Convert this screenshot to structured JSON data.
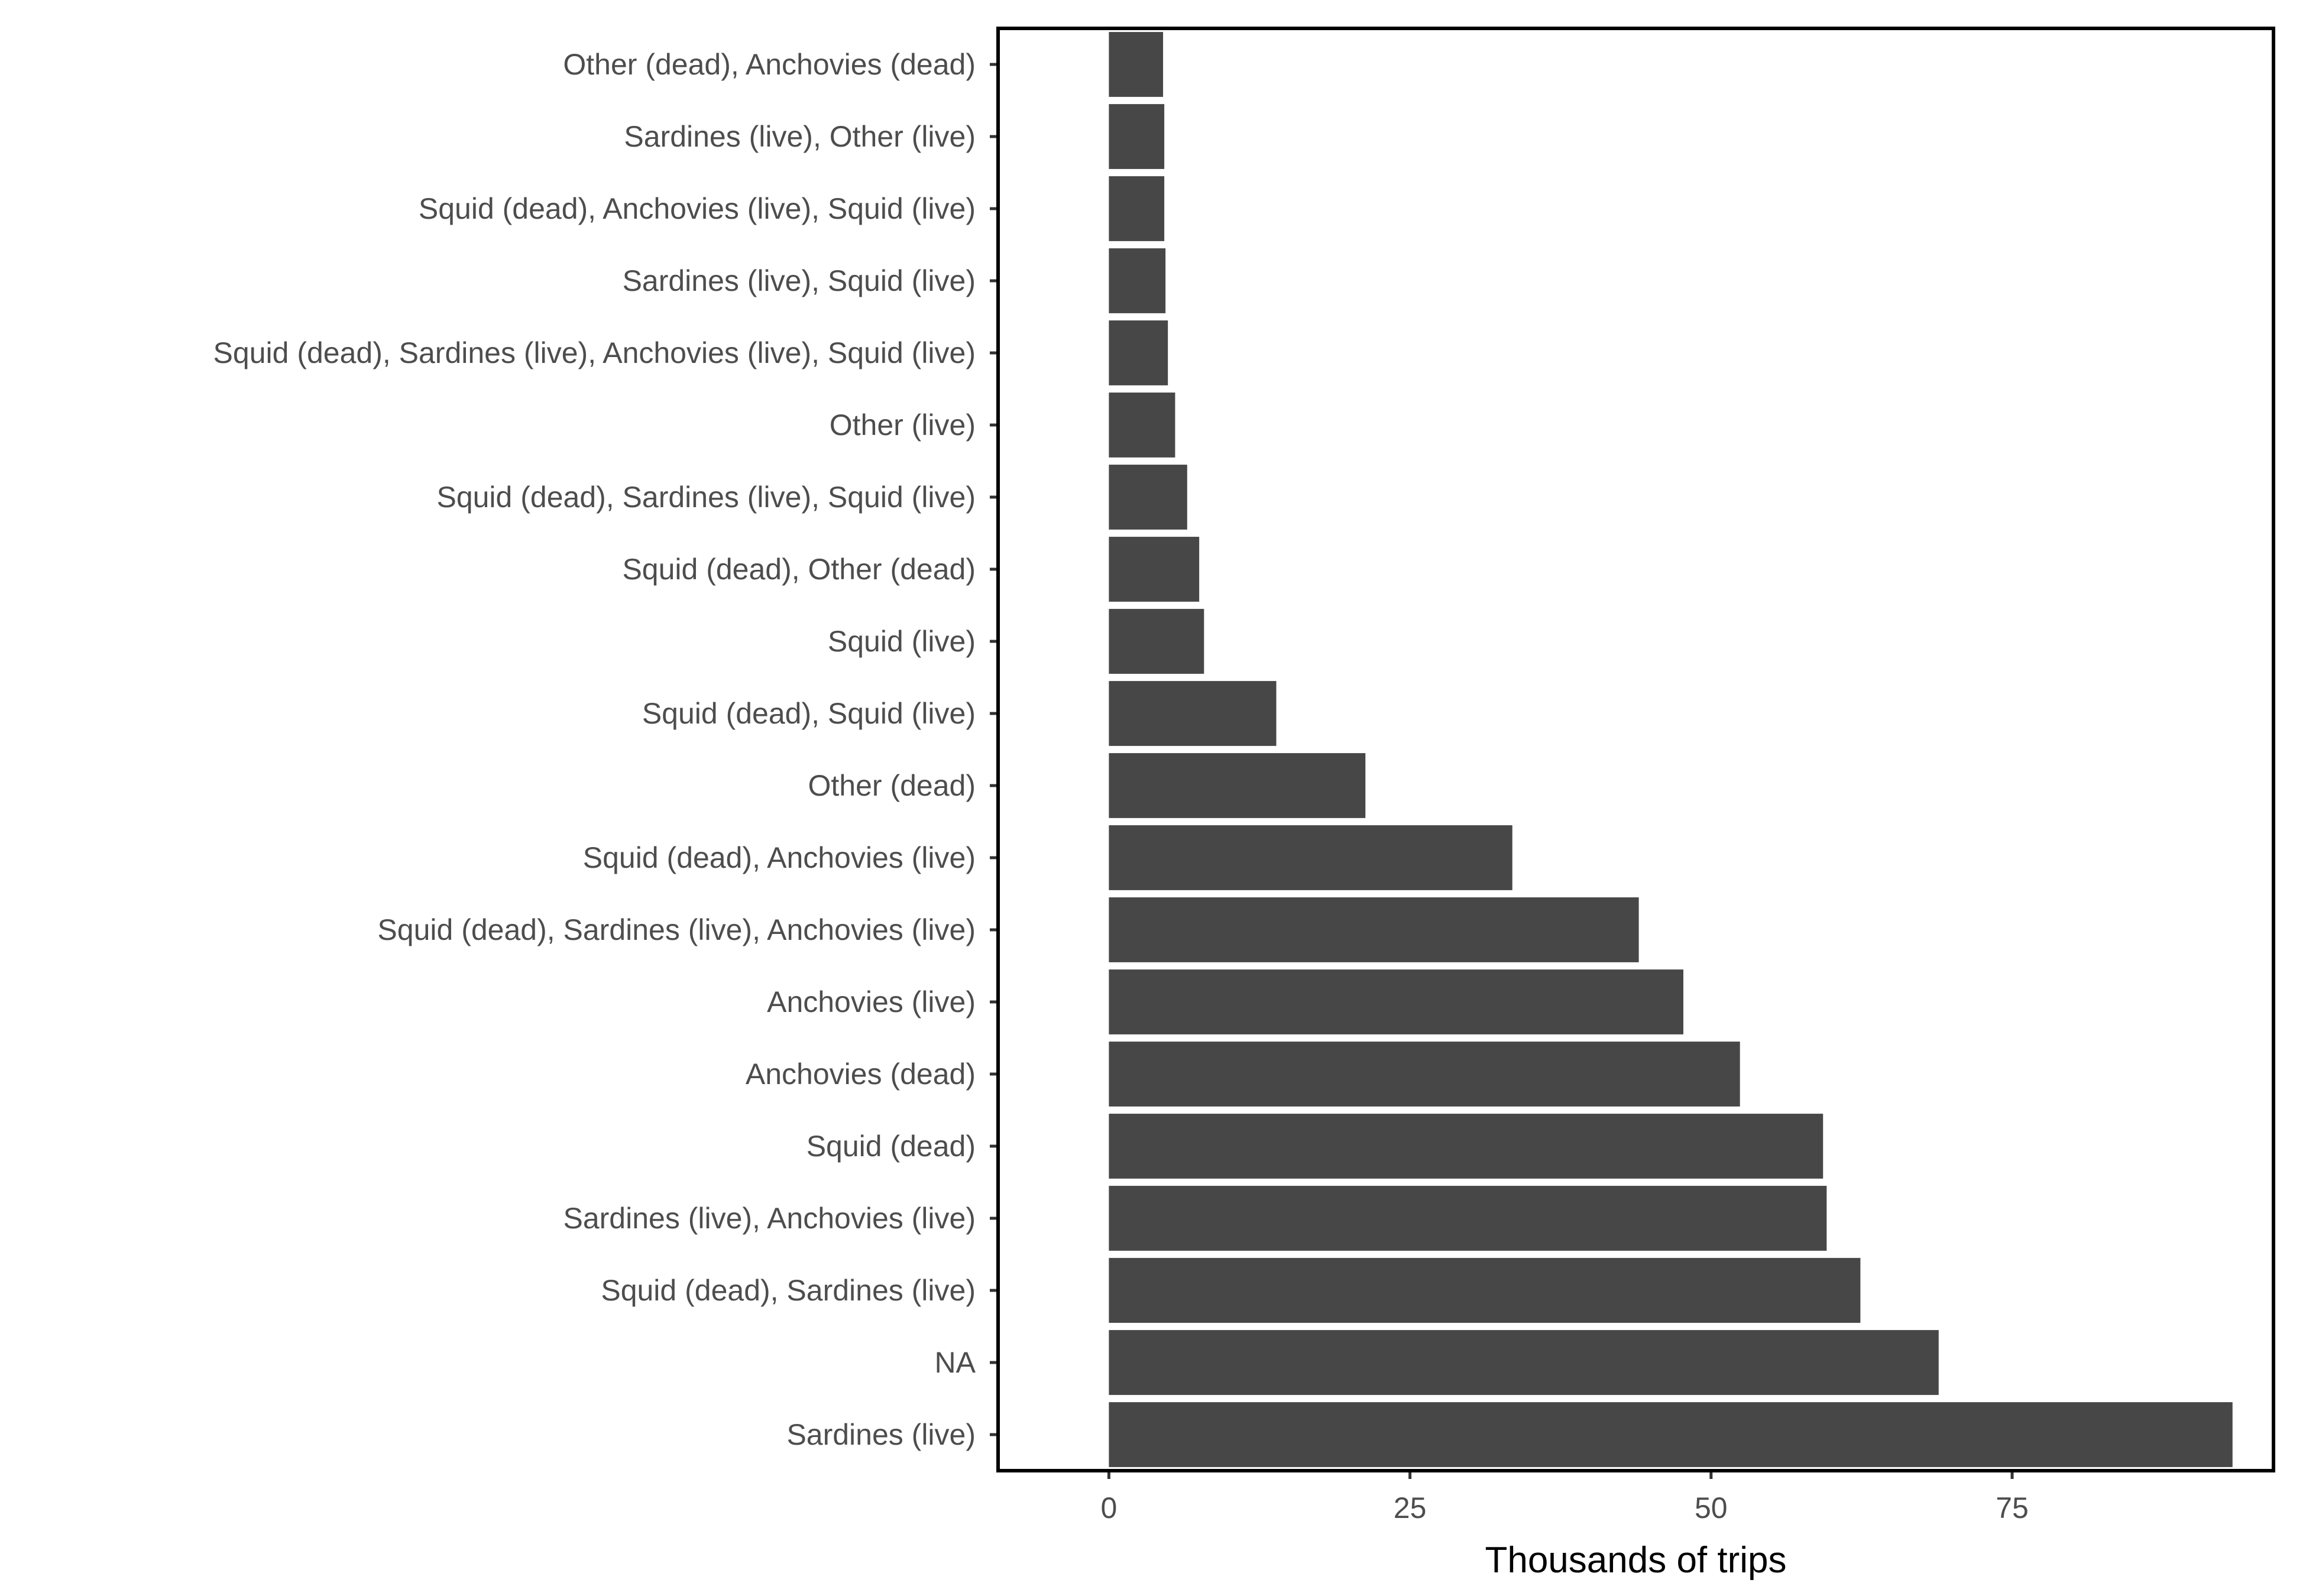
{
  "chart_data": {
    "type": "bar",
    "orientation": "horizontal",
    "title": "",
    "xlabel": "Thousands of trips",
    "ylabel": "",
    "xlim": [
      -9.2,
      96.7
    ],
    "xticks": [
      0,
      25,
      50,
      75
    ],
    "xtick_labels": [
      "0",
      "25",
      "50",
      "75"
    ],
    "grid": false,
    "legend": "none",
    "bar_color": "#474747",
    "categories": [
      "Sardines (live)",
      "NA",
      "Squid (dead), Sardines (live)",
      "Sardines (live), Anchovies (live)",
      "Squid (dead)",
      "Anchovies (dead)",
      "Anchovies (live)",
      "Squid (dead), Sardines (live), Anchovies (live)",
      "Squid (dead), Anchovies (live)",
      "Other (dead)",
      "Squid (dead), Squid (live)",
      "Squid (live)",
      "Squid (dead), Other (dead)",
      "Squid (dead), Sardines (live), Squid (live)",
      "Other (live)",
      "Squid (dead), Sardines (live), Anchovies (live), Squid (live)",
      "Sardines (live), Squid (live)",
      "Squid (dead), Anchovies (live), Squid (live)",
      "Sardines (live), Other (live)",
      "Other (dead), Anchovies (dead)"
    ],
    "values": [
      93.3,
      68.9,
      62.4,
      59.6,
      59.3,
      52.4,
      47.7,
      44.0,
      33.5,
      21.3,
      13.9,
      7.9,
      7.5,
      6.5,
      5.5,
      4.9,
      4.7,
      4.6,
      4.6,
      4.5
    ]
  }
}
